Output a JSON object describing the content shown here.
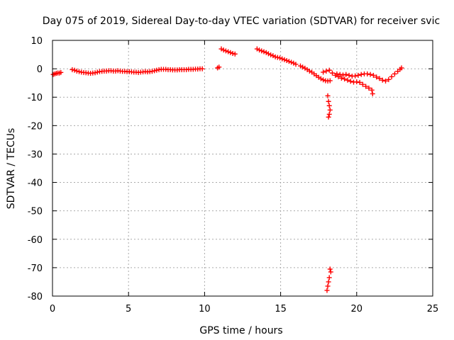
{
  "chart_data": {
    "type": "scatter",
    "title": "Day 075 of 2019, Sidereal Day-to-day VTEC variation (SDTVAR) for receiver svic",
    "xlabel": "GPS time / hours",
    "ylabel": "SDTVAR / TECUs",
    "xlim": [
      0,
      25
    ],
    "ylim": [
      -80,
      10
    ],
    "xticks": [
      0,
      5,
      10,
      15,
      20,
      25
    ],
    "yticks": [
      10,
      0,
      -10,
      -20,
      -30,
      -40,
      -50,
      -60,
      -70,
      -80
    ],
    "grid": true,
    "marker": "+",
    "color": "#ff0000",
    "series": [
      {
        "name": "SDTVAR",
        "points": [
          [
            0.05,
            -2.0
          ],
          [
            0.15,
            -1.8
          ],
          [
            0.25,
            -1.6
          ],
          [
            0.35,
            -1.5
          ],
          [
            0.45,
            -1.5
          ],
          [
            0.55,
            -1.3
          ],
          [
            1.3,
            -0.3
          ],
          [
            1.45,
            -0.5
          ],
          [
            1.6,
            -0.8
          ],
          [
            1.75,
            -1.0
          ],
          [
            1.9,
            -1.2
          ],
          [
            2.05,
            -1.3
          ],
          [
            2.2,
            -1.4
          ],
          [
            2.35,
            -1.5
          ],
          [
            2.5,
            -1.6
          ],
          [
            2.65,
            -1.5
          ],
          [
            2.8,
            -1.4
          ],
          [
            2.95,
            -1.2
          ],
          [
            3.1,
            -1.0
          ],
          [
            3.25,
            -0.9
          ],
          [
            3.4,
            -0.8
          ],
          [
            3.55,
            -0.8
          ],
          [
            3.7,
            -0.7
          ],
          [
            3.85,
            -0.7
          ],
          [
            4.0,
            -0.8
          ],
          [
            4.15,
            -0.8
          ],
          [
            4.3,
            -0.7
          ],
          [
            4.45,
            -0.8
          ],
          [
            4.6,
            -0.9
          ],
          [
            4.75,
            -0.9
          ],
          [
            4.9,
            -1.0
          ],
          [
            5.05,
            -1.0
          ],
          [
            5.2,
            -1.1
          ],
          [
            5.35,
            -1.2
          ],
          [
            5.5,
            -1.2
          ],
          [
            5.65,
            -1.3
          ],
          [
            5.8,
            -1.2
          ],
          [
            5.95,
            -1.1
          ],
          [
            6.1,
            -1.0
          ],
          [
            6.25,
            -1.1
          ],
          [
            6.4,
            -1.0
          ],
          [
            6.55,
            -0.9
          ],
          [
            6.7,
            -0.7
          ],
          [
            6.85,
            -0.5
          ],
          [
            7.0,
            -0.3
          ],
          [
            7.15,
            -0.2
          ],
          [
            7.3,
            -0.2
          ],
          [
            7.45,
            -0.2
          ],
          [
            7.6,
            -0.3
          ],
          [
            7.75,
            -0.3
          ],
          [
            7.9,
            -0.4
          ],
          [
            8.05,
            -0.4
          ],
          [
            8.2,
            -0.4
          ],
          [
            8.35,
            -0.3
          ],
          [
            8.5,
            -0.3
          ],
          [
            8.65,
            -0.3
          ],
          [
            8.8,
            -0.3
          ],
          [
            8.95,
            -0.2
          ],
          [
            9.1,
            -0.2
          ],
          [
            9.25,
            -0.2
          ],
          [
            9.4,
            -0.1
          ],
          [
            9.55,
            -0.1
          ],
          [
            9.7,
            0.0
          ],
          [
            9.85,
            0.0
          ],
          [
            10.85,
            0.3
          ],
          [
            10.95,
            0.6
          ],
          [
            11.1,
            7.0
          ],
          [
            11.25,
            6.6
          ],
          [
            11.4,
            6.3
          ],
          [
            11.55,
            6.0
          ],
          [
            11.7,
            5.7
          ],
          [
            11.85,
            5.4
          ],
          [
            12.0,
            5.2
          ],
          [
            13.45,
            7.0
          ],
          [
            13.6,
            6.6
          ],
          [
            13.75,
            6.3
          ],
          [
            13.9,
            6.0
          ],
          [
            14.05,
            5.7
          ],
          [
            14.2,
            5.3
          ],
          [
            14.35,
            4.9
          ],
          [
            14.5,
            4.6
          ],
          [
            14.65,
            4.2
          ],
          [
            14.8,
            4.0
          ],
          [
            14.95,
            3.8
          ],
          [
            15.1,
            3.5
          ],
          [
            15.25,
            3.2
          ],
          [
            15.4,
            2.9
          ],
          [
            15.55,
            2.6
          ],
          [
            15.7,
            2.3
          ],
          [
            15.85,
            2.0
          ],
          [
            16.0,
            1.6
          ],
          [
            16.3,
            1.0
          ],
          [
            16.45,
            0.6
          ],
          [
            16.6,
            0.2
          ],
          [
            16.75,
            -0.3
          ],
          [
            16.9,
            -0.8
          ],
          [
            17.05,
            -1.2
          ],
          [
            17.2,
            -1.8
          ],
          [
            17.35,
            -2.4
          ],
          [
            17.5,
            -3.0
          ],
          [
            17.65,
            -3.5
          ],
          [
            17.8,
            -3.9
          ],
          [
            17.95,
            -4.2
          ],
          [
            18.1,
            -4.3
          ],
          [
            18.25,
            -4.2
          ],
          [
            17.8,
            -1.2
          ],
          [
            18.0,
            -0.8
          ],
          [
            18.2,
            -0.5
          ],
          [
            18.4,
            -1.5
          ],
          [
            18.6,
            -2.3
          ],
          [
            18.8,
            -2.8
          ],
          [
            19.0,
            -3.3
          ],
          [
            19.2,
            -3.6
          ],
          [
            19.4,
            -4.0
          ],
          [
            19.6,
            -4.4
          ],
          [
            19.8,
            -4.7
          ],
          [
            20.0,
            -4.6
          ],
          [
            20.2,
            -4.8
          ],
          [
            20.4,
            -5.5
          ],
          [
            20.6,
            -6.2
          ],
          [
            20.8,
            -6.8
          ],
          [
            21.0,
            -7.5
          ],
          [
            21.05,
            -8.8
          ],
          [
            18.7,
            -1.8
          ],
          [
            18.9,
            -2.0
          ],
          [
            19.1,
            -2.2
          ],
          [
            19.3,
            -2.0
          ],
          [
            19.5,
            -2.3
          ],
          [
            19.7,
            -2.6
          ],
          [
            19.9,
            -2.5
          ],
          [
            20.1,
            -2.3
          ],
          [
            20.3,
            -2.0
          ],
          [
            20.5,
            -1.8
          ],
          [
            20.7,
            -1.8
          ],
          [
            20.9,
            -2.0
          ],
          [
            21.1,
            -2.3
          ],
          [
            21.3,
            -2.9
          ],
          [
            21.5,
            -3.4
          ],
          [
            21.7,
            -4.0
          ],
          [
            21.9,
            -4.3
          ],
          [
            22.1,
            -3.8
          ],
          [
            22.3,
            -2.8
          ],
          [
            22.5,
            -1.8
          ],
          [
            22.7,
            -0.9
          ],
          [
            22.85,
            -0.2
          ],
          [
            22.95,
            0.3
          ],
          [
            18.1,
            -9.5
          ],
          [
            18.15,
            -11.5
          ],
          [
            18.2,
            -13.0
          ],
          [
            18.25,
            -14.5
          ],
          [
            18.2,
            -16.0
          ],
          [
            18.15,
            -17.0
          ],
          [
            18.25,
            -70.5
          ],
          [
            18.3,
            -71.5
          ],
          [
            18.2,
            -73.5
          ],
          [
            18.15,
            -75.0
          ],
          [
            18.1,
            -76.5
          ],
          [
            18.05,
            -78.0
          ]
        ]
      }
    ]
  }
}
